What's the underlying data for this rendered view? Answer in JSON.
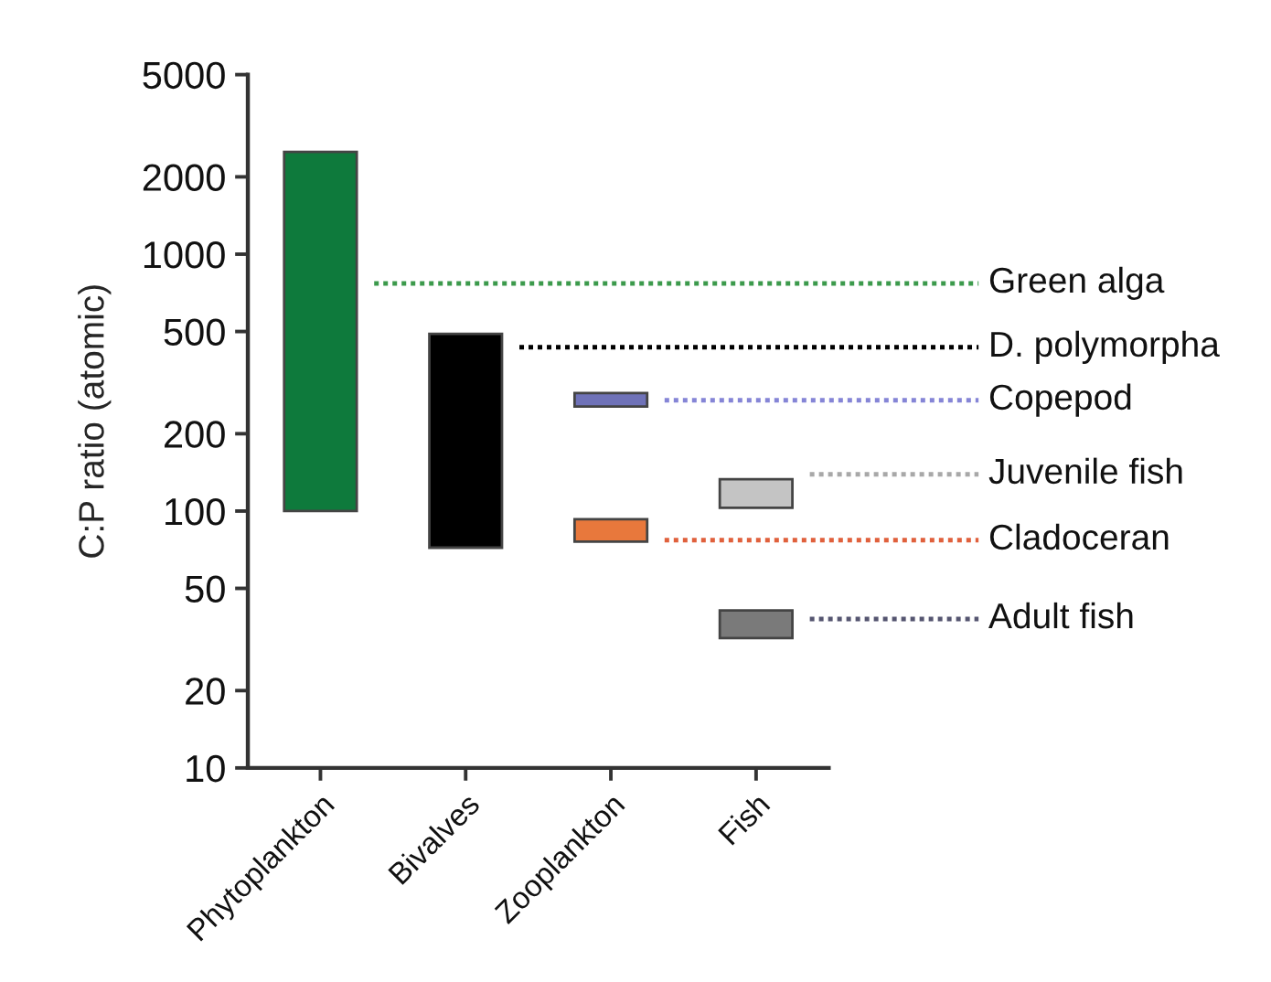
{
  "chart_data": {
    "type": "bar",
    "categories": [
      "Phytoplankton",
      "Bivalves",
      "Zooplankton",
      "Fish"
    ],
    "ylabel": "C:P ratio (atomic)",
    "log": true,
    "ylim": [
      10,
      5000
    ],
    "yticks": [
      10,
      20,
      50,
      100,
      200,
      500,
      1000,
      2000,
      5000
    ],
    "grid": false,
    "series": [
      {
        "colors": [
          "#0e7a3c",
          "#000000",
          "#6f72b8",
          "#c4c4c4"
        ],
        "base": [
          100,
          72,
          255,
          103
        ],
        "values": [
          2400,
          418,
          33,
          30
        ]
      },
      {
        "colors": [
          null,
          null,
          "#e8783c",
          "#7a7a7a"
        ],
        "base": [
          null,
          null,
          76,
          32
        ],
        "values": [
          null,
          null,
          17,
          9
        ]
      }
    ],
    "ref_lines": [
      {
        "axis": "y",
        "value": 770,
        "label": "Green alga",
        "color": "#3c9a4c",
        "line_style": "dotted"
      },
      {
        "axis": "y",
        "value": 434,
        "label": "D. polymorpha",
        "color": "#000000",
        "line_style": "dotted"
      },
      {
        "axis": "y",
        "value": 270,
        "label": "Copepod",
        "color": "#8585d6",
        "line_style": "dotted"
      },
      {
        "axis": "y",
        "value": 139,
        "label": "Juvenile fish",
        "color": "#a8a8a8",
        "line_style": "dotted"
      },
      {
        "axis": "y",
        "value": 77,
        "label": "Cladoceran",
        "color": "#e0603c",
        "line_style": "dotted"
      },
      {
        "axis": "y",
        "value": 38,
        "label": "Adult fish",
        "color": "#555570",
        "line_style": "dotted"
      }
    ]
  }
}
